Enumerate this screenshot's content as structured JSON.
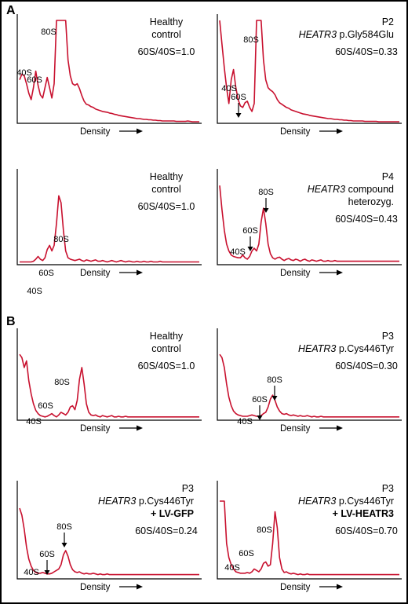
{
  "sections": [
    "A",
    "B"
  ],
  "x_axis_label": "Density",
  "chart_data": [
    {
      "type": "line",
      "section": "A",
      "title_lines": [
        "Healthy",
        "control"
      ],
      "ratio_text": "60S/40S=1.0",
      "x_label": "Density",
      "peak_labels": [
        "40S",
        "60S",
        "80S"
      ],
      "arrows_on": [],
      "x": [
        0,
        3,
        6,
        9,
        12,
        15,
        18,
        21,
        24,
        27,
        30,
        33,
        36,
        39,
        42,
        45,
        48,
        51,
        54,
        57,
        60,
        63,
        66,
        69,
        72,
        75,
        78,
        81,
        84,
        87,
        90,
        93,
        96,
        99,
        102,
        105,
        108,
        111,
        114,
        117,
        120,
        123,
        126,
        129,
        132,
        135,
        138,
        141,
        144,
        147,
        150,
        153,
        156,
        159,
        162,
        165,
        168,
        171,
        174,
        177,
        180,
        183,
        186,
        189,
        192,
        195,
        198,
        201,
        204,
        207,
        210,
        213,
        216,
        219,
        222,
        225,
        228,
        231,
        234
      ],
      "y": [
        0.55,
        0.62,
        0.6,
        0.5,
        0.38,
        0.3,
        0.45,
        0.66,
        0.48,
        0.36,
        0.32,
        0.45,
        0.58,
        0.45,
        0.32,
        0.5,
        1.3,
        1.3,
        1.3,
        1.3,
        1.3,
        0.8,
        0.6,
        0.5,
        0.48,
        0.5,
        0.44,
        0.35,
        0.28,
        0.24,
        0.23,
        0.21,
        0.2,
        0.18,
        0.17,
        0.16,
        0.15,
        0.145,
        0.14,
        0.13,
        0.125,
        0.115,
        0.11,
        0.1,
        0.095,
        0.09,
        0.085,
        0.08,
        0.075,
        0.07,
        0.065,
        0.06,
        0.06,
        0.055,
        0.05,
        0.05,
        0.045,
        0.045,
        0.04,
        0.04,
        0.035,
        0.035,
        0.03,
        0.03,
        0.03,
        0.03,
        0.03,
        0.03,
        0.025,
        0.025,
        0.025,
        0.025,
        0.025,
        0.03,
        0.025,
        0.02,
        0.02,
        0.02,
        0.02
      ]
    },
    {
      "type": "line",
      "section": "A",
      "title_lines": [
        "P2"
      ],
      "subtitle_gene": "HEATR3",
      "subtitle_variant": " p.Gly584Glu",
      "ratio_text": "60S/40S=0.33",
      "x_label": "Density",
      "peak_labels": [
        "40S",
        "60S",
        "80S"
      ],
      "arrows_on": [
        "60S"
      ],
      "x": [
        0,
        3,
        6,
        9,
        12,
        15,
        18,
        21,
        24,
        27,
        30,
        33,
        36,
        39,
        42,
        45,
        48,
        51,
        54,
        57,
        60,
        63,
        66,
        69,
        72,
        75,
        78,
        81,
        84,
        87,
        90,
        93,
        96,
        99,
        102,
        105,
        108,
        111,
        114,
        117,
        120,
        123,
        126,
        129,
        132,
        135,
        138,
        141,
        144,
        147,
        150,
        153,
        156,
        159,
        162,
        165,
        168,
        171,
        174,
        177,
        180,
        183,
        186,
        189,
        192,
        195,
        198,
        201,
        204,
        207,
        210,
        213,
        216,
        219,
        222,
        225,
        228,
        231,
        234
      ],
      "y": [
        1.3,
        1.0,
        0.7,
        0.45,
        0.25,
        0.55,
        0.68,
        0.45,
        0.3,
        0.22,
        0.2,
        0.26,
        0.28,
        0.2,
        0.15,
        0.25,
        1.3,
        1.3,
        1.3,
        0.8,
        0.55,
        0.45,
        0.42,
        0.4,
        0.36,
        0.3,
        0.26,
        0.24,
        0.22,
        0.2,
        0.19,
        0.17,
        0.16,
        0.15,
        0.14,
        0.13,
        0.12,
        0.115,
        0.11,
        0.1,
        0.095,
        0.09,
        0.085,
        0.08,
        0.075,
        0.07,
        0.065,
        0.06,
        0.06,
        0.055,
        0.05,
        0.05,
        0.045,
        0.045,
        0.04,
        0.04,
        0.035,
        0.035,
        0.03,
        0.03,
        0.03,
        0.03,
        0.03,
        0.025,
        0.025,
        0.025,
        0.025,
        0.025,
        0.025,
        0.02,
        0.02,
        0.02,
        0.02,
        0.02,
        0.02,
        0.02,
        0.02,
        0.02,
        0.02
      ]
    },
    {
      "type": "line",
      "section": "A",
      "title_lines": [
        "Healthy",
        "control"
      ],
      "ratio_text": "60S/40S=1.0",
      "x_label": "Density",
      "peak_labels": [
        "40S",
        "60S",
        "80S"
      ],
      "arrows_on": [],
      "x": [
        0,
        3,
        6,
        9,
        12,
        15,
        18,
        21,
        24,
        27,
        30,
        33,
        36,
        39,
        42,
        45,
        48,
        51,
        54,
        57,
        60,
        63,
        66,
        69,
        72,
        75,
        78,
        81,
        84,
        87,
        90,
        93,
        96,
        99,
        102,
        105,
        108,
        111,
        114,
        117,
        120,
        123,
        126,
        129,
        132,
        135,
        138,
        141,
        144,
        147,
        150,
        153,
        156,
        159,
        162,
        165,
        168,
        171,
        174,
        177,
        180,
        183,
        186,
        189,
        192,
        195,
        198,
        201,
        204,
        207,
        210,
        213,
        216,
        219,
        222,
        225,
        228,
        231,
        234
      ],
      "y": [
        0.04,
        0.04,
        0.04,
        0.04,
        0.04,
        0.04,
        0.05,
        0.08,
        0.12,
        0.08,
        0.06,
        0.1,
        0.22,
        0.28,
        0.2,
        0.28,
        0.6,
        1.0,
        0.9,
        0.5,
        0.2,
        0.1,
        0.08,
        0.07,
        0.06,
        0.07,
        0.08,
        0.06,
        0.05,
        0.07,
        0.06,
        0.05,
        0.06,
        0.07,
        0.05,
        0.05,
        0.06,
        0.05,
        0.04,
        0.05,
        0.06,
        0.05,
        0.04,
        0.05,
        0.06,
        0.05,
        0.04,
        0.05,
        0.05,
        0.04,
        0.04,
        0.05,
        0.04,
        0.04,
        0.05,
        0.04,
        0.04,
        0.05,
        0.04,
        0.04,
        0.04,
        0.05,
        0.04,
        0.04,
        0.04,
        0.04,
        0.04,
        0.04,
        0.04,
        0.04,
        0.04,
        0.04,
        0.04,
        0.04,
        0.04,
        0.04,
        0.04,
        0.04,
        0.04
      ]
    },
    {
      "type": "line",
      "section": "A",
      "title_lines": [
        "P4"
      ],
      "subtitle_gene": "HEATR3",
      "subtitle_variant": " compound",
      "extra_line": "heterozyg.",
      "ratio_text": "60S/40S=0.43",
      "x_label": "Density",
      "peak_labels": [
        "40S",
        "60S",
        "80S"
      ],
      "arrows_on": [
        "60S",
        "80S"
      ],
      "x": [
        0,
        3,
        6,
        9,
        12,
        15,
        18,
        21,
        24,
        27,
        30,
        33,
        36,
        39,
        42,
        45,
        48,
        51,
        54,
        57,
        60,
        63,
        66,
        69,
        72,
        75,
        78,
        81,
        84,
        87,
        90,
        93,
        96,
        99,
        102,
        105,
        108,
        111,
        114,
        117,
        120,
        123,
        126,
        129,
        132,
        135,
        138,
        141,
        144,
        147,
        150,
        153,
        156,
        159,
        162,
        165,
        168,
        171,
        174,
        177,
        180,
        183,
        186,
        189,
        192,
        195,
        198,
        201,
        204,
        207,
        210,
        213,
        216,
        219,
        222,
        225,
        228,
        231,
        234
      ],
      "y": [
        1.15,
        0.8,
        0.5,
        0.3,
        0.2,
        0.14,
        0.12,
        0.11,
        0.1,
        0.1,
        0.14,
        0.1,
        0.08,
        0.12,
        0.2,
        0.24,
        0.2,
        0.3,
        0.62,
        0.82,
        0.6,
        0.3,
        0.16,
        0.1,
        0.08,
        0.1,
        0.11,
        0.08,
        0.06,
        0.08,
        0.09,
        0.07,
        0.06,
        0.08,
        0.07,
        0.05,
        0.07,
        0.08,
        0.06,
        0.05,
        0.07,
        0.06,
        0.05,
        0.06,
        0.07,
        0.05,
        0.05,
        0.06,
        0.05,
        0.05,
        0.06,
        0.05,
        0.05,
        0.05,
        0.05,
        0.05,
        0.05,
        0.05,
        0.05,
        0.05,
        0.05,
        0.05,
        0.05,
        0.05,
        0.05,
        0.05,
        0.05,
        0.05,
        0.05,
        0.05,
        0.05,
        0.05,
        0.05,
        0.05,
        0.05,
        0.05,
        0.05,
        0.05,
        0.05
      ]
    },
    {
      "type": "line",
      "section": "B",
      "title_lines": [
        "Healthy",
        "control"
      ],
      "ratio_text": "60S/40S=1.0",
      "x_label": "Density",
      "peak_labels": [
        "40S",
        "60S",
        "80S"
      ],
      "arrows_on": [],
      "x": [
        0,
        3,
        6,
        9,
        12,
        15,
        18,
        21,
        24,
        27,
        30,
        33,
        36,
        39,
        42,
        45,
        48,
        51,
        54,
        57,
        60,
        63,
        66,
        69,
        72,
        75,
        78,
        81,
        84,
        87,
        90,
        93,
        96,
        99,
        102,
        105,
        108,
        111,
        114,
        117,
        120,
        123,
        126,
        129,
        132,
        135,
        138,
        141,
        144,
        147,
        150,
        153,
        156,
        159,
        162,
        165,
        168,
        171,
        174,
        177,
        180,
        183,
        186,
        189,
        192,
        195,
        198,
        201,
        204,
        207,
        210,
        213,
        216,
        219,
        222,
        225,
        228,
        231,
        234
      ],
      "y": [
        1.0,
        0.95,
        0.8,
        0.9,
        0.6,
        0.4,
        0.25,
        0.15,
        0.1,
        0.07,
        0.06,
        0.05,
        0.06,
        0.08,
        0.1,
        0.07,
        0.05,
        0.08,
        0.12,
        0.1,
        0.08,
        0.12,
        0.2,
        0.22,
        0.16,
        0.3,
        0.62,
        0.8,
        0.55,
        0.25,
        0.12,
        0.08,
        0.07,
        0.08,
        0.06,
        0.05,
        0.07,
        0.06,
        0.05,
        0.06,
        0.07,
        0.05,
        0.05,
        0.06,
        0.05,
        0.05,
        0.06,
        0.05,
        0.05,
        0.05,
        0.05,
        0.05,
        0.05,
        0.05,
        0.05,
        0.05,
        0.05,
        0.05,
        0.05,
        0.05,
        0.05,
        0.05,
        0.05,
        0.05,
        0.05,
        0.05,
        0.05,
        0.05,
        0.05,
        0.05,
        0.05,
        0.05,
        0.05,
        0.05,
        0.05,
        0.05,
        0.05,
        0.05,
        0.05
      ]
    },
    {
      "type": "line",
      "section": "B",
      "title_lines": [
        "P3"
      ],
      "subtitle_gene": "HEATR3",
      "subtitle_variant": " p.Cys446Tyr",
      "ratio_text": "60S/40S=0.30",
      "x_label": "Density",
      "peak_labels": [
        "40S",
        "60S",
        "80S"
      ],
      "arrows_on": [
        "60S",
        "80S"
      ],
      "x": [
        0,
        3,
        6,
        9,
        12,
        15,
        18,
        21,
        24,
        27,
        30,
        33,
        36,
        39,
        42,
        45,
        48,
        51,
        54,
        57,
        60,
        63,
        66,
        69,
        72,
        75,
        78,
        81,
        84,
        87,
        90,
        93,
        96,
        99,
        102,
        105,
        108,
        111,
        114,
        117,
        120,
        123,
        126,
        129,
        132,
        135,
        138,
        141,
        144,
        147,
        150,
        153,
        156,
        159,
        162,
        165,
        168,
        171,
        174,
        177,
        180,
        183,
        186,
        189,
        192,
        195,
        198,
        201,
        204,
        207,
        210,
        213,
        216,
        219,
        222,
        225,
        228,
        231,
        234
      ],
      "y": [
        1.0,
        0.95,
        0.8,
        0.55,
        0.35,
        0.22,
        0.14,
        0.1,
        0.08,
        0.07,
        0.06,
        0.06,
        0.06,
        0.07,
        0.08,
        0.07,
        0.06,
        0.06,
        0.07,
        0.1,
        0.12,
        0.2,
        0.32,
        0.38,
        0.3,
        0.2,
        0.14,
        0.1,
        0.09,
        0.1,
        0.08,
        0.07,
        0.08,
        0.07,
        0.06,
        0.07,
        0.06,
        0.06,
        0.07,
        0.06,
        0.05,
        0.06,
        0.05,
        0.05,
        0.06,
        0.05,
        0.05,
        0.05,
        0.05,
        0.05,
        0.05,
        0.05,
        0.05,
        0.05,
        0.05,
        0.05,
        0.05,
        0.05,
        0.05,
        0.05,
        0.05,
        0.05,
        0.05,
        0.05,
        0.05,
        0.05,
        0.05,
        0.05,
        0.05,
        0.05,
        0.05,
        0.05,
        0.05,
        0.05,
        0.05,
        0.05,
        0.05,
        0.05,
        0.05
      ]
    },
    {
      "type": "line",
      "section": "B",
      "title_lines": [
        "P3"
      ],
      "subtitle_gene": "HEATR3",
      "subtitle_variant": " p.Cys446Tyr",
      "extra_line_bold": "+ LV-GFP",
      "ratio_text": "60S/40S=0.24",
      "x_label": "Density",
      "peak_labels": [
        "40S",
        "60S",
        "80S"
      ],
      "arrows_on": [
        "60S",
        "80S"
      ],
      "x": [
        0,
        3,
        6,
        9,
        12,
        15,
        18,
        21,
        24,
        27,
        30,
        33,
        36,
        39,
        42,
        45,
        48,
        51,
        54,
        57,
        60,
        63,
        66,
        69,
        72,
        75,
        78,
        81,
        84,
        87,
        90,
        93,
        96,
        99,
        102,
        105,
        108,
        111,
        114,
        117,
        120,
        123,
        126,
        129,
        132,
        135,
        138,
        141,
        144,
        147,
        150,
        153,
        156,
        159,
        162,
        165,
        168,
        171,
        174,
        177,
        180,
        183,
        186,
        189,
        192,
        195,
        198,
        201,
        204,
        207,
        210,
        213,
        216,
        219,
        222,
        225,
        228,
        231,
        234
      ],
      "y": [
        1.0,
        0.9,
        0.7,
        0.45,
        0.28,
        0.18,
        0.12,
        0.09,
        0.08,
        0.08,
        0.09,
        0.08,
        0.07,
        0.07,
        0.08,
        0.1,
        0.12,
        0.14,
        0.2,
        0.34,
        0.4,
        0.32,
        0.2,
        0.13,
        0.1,
        0.09,
        0.1,
        0.08,
        0.07,
        0.08,
        0.07,
        0.07,
        0.08,
        0.07,
        0.06,
        0.07,
        0.06,
        0.06,
        0.07,
        0.06,
        0.06,
        0.06,
        0.06,
        0.06,
        0.06,
        0.06,
        0.06,
        0.06,
        0.06,
        0.06,
        0.06,
        0.06,
        0.06,
        0.06,
        0.06,
        0.06,
        0.06,
        0.06,
        0.06,
        0.06,
        0.06,
        0.06,
        0.06,
        0.06,
        0.06,
        0.06,
        0.06,
        0.06,
        0.06,
        0.06,
        0.06,
        0.06,
        0.06,
        0.06,
        0.06,
        0.06,
        0.06,
        0.06,
        0.06
      ]
    },
    {
      "type": "line",
      "section": "B",
      "title_lines": [
        "P3"
      ],
      "subtitle_gene": "HEATR3",
      "subtitle_variant": " p.Cys446Tyr",
      "extra_line_bold": "+ LV-HEATR3",
      "ratio_text": "60S/40S=0.70",
      "x_label": "Density",
      "peak_labels": [
        "40S",
        "60S",
        "80S"
      ],
      "arrows_on": [],
      "x": [
        0,
        3,
        6,
        9,
        12,
        15,
        18,
        21,
        24,
        27,
        30,
        33,
        36,
        39,
        42,
        45,
        48,
        51,
        54,
        57,
        60,
        63,
        66,
        69,
        72,
        75,
        78,
        81,
        84,
        87,
        90,
        93,
        96,
        99,
        102,
        105,
        108,
        111,
        114,
        117,
        120,
        123,
        126,
        129,
        132,
        135,
        138,
        141,
        144,
        147,
        150,
        153,
        156,
        159,
        162,
        165,
        168,
        171,
        174,
        177,
        180,
        183,
        186,
        189,
        192,
        195,
        198,
        201,
        204,
        207,
        210,
        213,
        216,
        219,
        222,
        225,
        228,
        231,
        234
      ],
      "y": [
        1.1,
        1.1,
        1.1,
        0.5,
        0.3,
        0.2,
        0.14,
        0.1,
        0.09,
        0.08,
        0.08,
        0.08,
        0.09,
        0.08,
        0.1,
        0.14,
        0.12,
        0.1,
        0.14,
        0.22,
        0.24,
        0.18,
        0.2,
        0.5,
        0.95,
        0.72,
        0.3,
        0.14,
        0.09,
        0.1,
        0.08,
        0.07,
        0.08,
        0.07,
        0.06,
        0.07,
        0.06,
        0.06,
        0.07,
        0.06,
        0.06,
        0.06,
        0.06,
        0.06,
        0.06,
        0.06,
        0.06,
        0.06,
        0.06,
        0.06,
        0.06,
        0.06,
        0.06,
        0.06,
        0.06,
        0.06,
        0.06,
        0.06,
        0.06,
        0.06,
        0.06,
        0.06,
        0.06,
        0.06,
        0.06,
        0.06,
        0.06,
        0.06,
        0.06,
        0.06,
        0.06,
        0.06,
        0.06,
        0.06,
        0.06,
        0.06,
        0.06,
        0.06,
        0.06
      ]
    }
  ]
}
